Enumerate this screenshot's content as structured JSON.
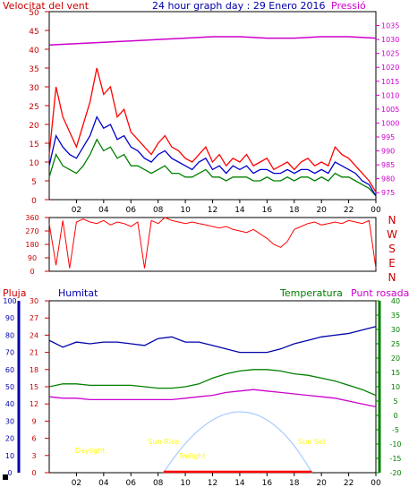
{
  "title": "24 hour graph day : 29 Enero 2016",
  "colors": {
    "wind": "#ff0000",
    "wind_avg": "#0000cc",
    "wind_gust": "#008000",
    "pressure": "#cc00cc",
    "direction": "#ff0000",
    "humidity": "#0000aa",
    "temperature": "#008000",
    "dewpoint": "#cc00cc",
    "rain": "#ff0000",
    "sun": "#aaccff",
    "sun_label": "#ffff00",
    "axis_red": "#cc0000",
    "axis_blue": "#0000aa",
    "axis_green": "#008000",
    "axis_pressure": "#cc00cc"
  },
  "chart_data": [
    {
      "type": "line",
      "id": "wind-pressure",
      "left_label": "Velocitat del vent",
      "right_label": "Pressió",
      "x_ticks": [
        "02",
        "04",
        "06",
        "08",
        "10",
        "12",
        "14",
        "16",
        "18",
        "20",
        "22",
        "00"
      ],
      "ylim": [
        0,
        50
      ],
      "y_ticks": [
        0,
        5,
        10,
        15,
        20,
        25,
        30,
        35,
        40,
        45,
        50
      ],
      "y2lim": [
        972.5,
        1040
      ],
      "y2_ticks": [
        975,
        980,
        985,
        990,
        995,
        1000,
        1005,
        1010,
        1015,
        1020,
        1025,
        1030,
        1035
      ],
      "series": [
        {
          "role": "pressure",
          "x": [
            0,
            2,
            4,
            6,
            8,
            10,
            12,
            14,
            16,
            18,
            20,
            22,
            24
          ],
          "y": [
            1028,
            1028.5,
            1029,
            1029.5,
            1030,
            1030.5,
            1031,
            1031,
            1030.5,
            1030.5,
            1031,
            1031,
            1030.5
          ]
        },
        {
          "role": "wind",
          "x": [
            0,
            0.5,
            1,
            1.5,
            2,
            2.5,
            3,
            3.5,
            4,
            4.5,
            5,
            5.5,
            6,
            6.5,
            7,
            7.5,
            8,
            8.5,
            9,
            9.5,
            10,
            10.5,
            11,
            11.5,
            12,
            12.5,
            13,
            13.5,
            14,
            14.5,
            15,
            15.5,
            16,
            16.5,
            17,
            17.5,
            18,
            18.5,
            19,
            19.5,
            20,
            20.5,
            21,
            21.5,
            22,
            22.5,
            23,
            23.5,
            24
          ],
          "y": [
            12,
            30,
            22,
            18,
            14,
            20,
            26,
            35,
            28,
            30,
            22,
            24,
            18,
            16,
            14,
            12,
            15,
            17,
            14,
            13,
            11,
            10,
            12,
            14,
            10,
            12,
            9,
            11,
            10,
            12,
            9,
            10,
            11,
            8,
            9,
            10,
            8,
            10,
            11,
            9,
            10,
            9,
            14,
            12,
            11,
            9,
            7,
            5,
            2
          ]
        },
        {
          "role": "wind_avg",
          "x": [
            0,
            0.5,
            1,
            1.5,
            2,
            2.5,
            3,
            3.5,
            4,
            4.5,
            5,
            5.5,
            6,
            6.5,
            7,
            7.5,
            8,
            8.5,
            9,
            9.5,
            10,
            10.5,
            11,
            11.5,
            12,
            12.5,
            13,
            13.5,
            14,
            14.5,
            15,
            15.5,
            16,
            16.5,
            17,
            17.5,
            18,
            18.5,
            19,
            19.5,
            20,
            20.5,
            21,
            21.5,
            22,
            22.5,
            23,
            23.5,
            24
          ],
          "y": [
            9,
            17,
            14,
            12,
            11,
            14,
            17,
            22,
            19,
            20,
            16,
            17,
            14,
            13,
            11,
            10,
            12,
            13,
            11,
            10,
            9,
            8,
            10,
            11,
            8,
            9,
            7,
            9,
            8,
            9,
            7,
            8,
            8,
            7,
            7,
            8,
            7,
            8,
            8,
            7,
            8,
            7,
            10,
            9,
            8,
            7,
            5,
            4,
            1
          ]
        },
        {
          "role": "wind_gust",
          "x": [
            0,
            0.5,
            1,
            1.5,
            2,
            2.5,
            3,
            3.5,
            4,
            4.5,
            5,
            5.5,
            6,
            6.5,
            7,
            7.5,
            8,
            8.5,
            9,
            9.5,
            10,
            10.5,
            11,
            11.5,
            12,
            12.5,
            13,
            13.5,
            14,
            14.5,
            15,
            15.5,
            16,
            16.5,
            17,
            17.5,
            18,
            18.5,
            19,
            19.5,
            20,
            20.5,
            21,
            21.5,
            22,
            22.5,
            23,
            23.5,
            24
          ],
          "y": [
            6,
            12,
            9,
            8,
            7,
            9,
            12,
            16,
            13,
            14,
            11,
            12,
            9,
            9,
            8,
            7,
            8,
            9,
            7,
            7,
            6,
            6,
            7,
            8,
            6,
            6,
            5,
            6,
            6,
            6,
            5,
            5,
            6,
            5,
            5,
            6,
            5,
            6,
            6,
            5,
            6,
            5,
            7,
            6,
            6,
            5,
            4,
            3,
            1
          ]
        }
      ]
    },
    {
      "type": "line",
      "id": "direction",
      "y_ticks": [
        0,
        90,
        180,
        270,
        360
      ],
      "ylim": [
        0,
        360
      ],
      "right_labels": [
        "N",
        "W",
        "S",
        "E",
        "N"
      ],
      "series": [
        {
          "role": "direction",
          "x": [
            0,
            0.5,
            1,
            1.5,
            2,
            2.5,
            3,
            3.5,
            4,
            4.5,
            5,
            5.5,
            6,
            6.5,
            7,
            7.5,
            8,
            8.5,
            9,
            9.5,
            10,
            10.5,
            11,
            11.5,
            12,
            12.5,
            13,
            13.5,
            14,
            14.5,
            15,
            15.5,
            16,
            16.5,
            17,
            17.5,
            18,
            18.5,
            19,
            19.5,
            20,
            20.5,
            21,
            21.5,
            22,
            22.5,
            23,
            23.5,
            24
          ],
          "y": [
            320,
            40,
            340,
            20,
            330,
            350,
            330,
            320,
            340,
            310,
            330,
            320,
            300,
            330,
            20,
            340,
            320,
            360,
            340,
            330,
            320,
            330,
            320,
            310,
            300,
            290,
            300,
            280,
            270,
            260,
            280,
            250,
            220,
            180,
            160,
            200,
            280,
            300,
            320,
            330,
            310,
            320,
            330,
            320,
            340,
            330,
            320,
            340,
            20
          ]
        }
      ]
    },
    {
      "type": "line",
      "id": "temp-hum",
      "labels": {
        "rain": "Pluja",
        "humidity": "Humitat",
        "temperature": "Temperatura",
        "dewpoint": "Punt rosada"
      },
      "x_ticks": [
        "02",
        "04",
        "06",
        "08",
        "10",
        "12",
        "14",
        "16",
        "18",
        "20",
        "22",
        "00"
      ],
      "rain_ticks": [
        0,
        3,
        6,
        9,
        12,
        15,
        18,
        21,
        24,
        27,
        30
      ],
      "humidity_ticks": [
        0,
        10,
        20,
        30,
        40,
        50,
        60,
        70,
        80,
        90,
        100
      ],
      "temp_ticks": [
        -20,
        -15,
        -10,
        -5,
        0,
        5,
        10,
        15,
        20,
        25,
        30,
        35,
        40
      ],
      "humidity_lim": [
        0,
        100
      ],
      "temp_lim": [
        -20,
        40
      ],
      "annotations": [
        {
          "text": "Daylight",
          "x": 3
        },
        {
          "text": "Sun Rise",
          "x": 8.4
        },
        {
          "text": "Twilight",
          "x": 10.5
        },
        {
          "text": "Sun Set",
          "x": 19.3
        }
      ],
      "sun_curve": {
        "start": 8.4,
        "peak_x": 14.2,
        "peak_t": 0,
        "end": 19.3
      },
      "series": [
        {
          "role": "humidity",
          "x": [
            0,
            1,
            2,
            3,
            4,
            5,
            6,
            7,
            8,
            9,
            10,
            11,
            12,
            13,
            14,
            15,
            16,
            17,
            18,
            19,
            20,
            21,
            22,
            23,
            24
          ],
          "y": [
            77,
            73,
            76,
            75,
            76,
            76,
            75,
            74,
            78,
            79,
            76,
            76,
            74,
            72,
            70,
            70,
            70,
            72,
            75,
            77,
            79,
            80,
            81,
            83,
            85
          ]
        },
        {
          "role": "temperature",
          "x": [
            0,
            1,
            2,
            3,
            4,
            5,
            6,
            7,
            8,
            9,
            10,
            11,
            12,
            13,
            14,
            15,
            16,
            17,
            18,
            19,
            20,
            21,
            22,
            23,
            24
          ],
          "y": [
            10,
            11,
            11,
            10.5,
            10.5,
            10.5,
            10.5,
            10,
            9.5,
            9.5,
            10,
            11,
            13,
            14.5,
            15.5,
            16,
            16,
            15.5,
            14.5,
            14,
            13,
            12,
            10.5,
            9,
            7
          ]
        },
        {
          "role": "dewpoint",
          "x": [
            0,
            1,
            2,
            3,
            4,
            5,
            6,
            7,
            8,
            9,
            10,
            11,
            12,
            13,
            14,
            15,
            16,
            17,
            18,
            19,
            20,
            21,
            22,
            23,
            24
          ],
          "y": [
            6.5,
            6,
            6,
            5.5,
            5.5,
            5.5,
            5.5,
            5.5,
            5.5,
            5.5,
            6,
            6.5,
            7,
            8,
            8.5,
            9,
            8.5,
            8,
            7.5,
            7,
            6.5,
            6,
            5,
            4,
            3
          ]
        },
        {
          "role": "rain",
          "x": [
            8.4,
            10,
            12,
            14,
            16,
            18,
            19.3
          ],
          "y": [
            0,
            0,
            0,
            0,
            0,
            0,
            0
          ]
        }
      ]
    }
  ]
}
